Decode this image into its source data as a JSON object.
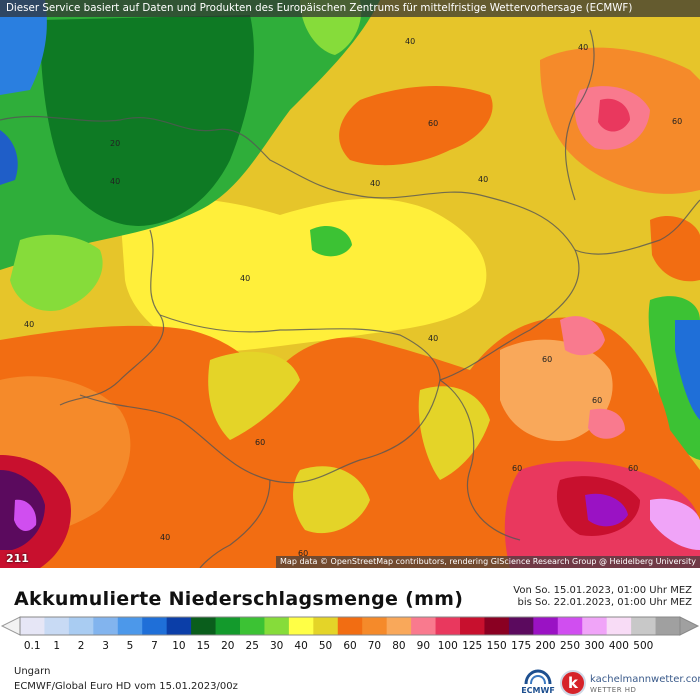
{
  "header": {
    "service_notice": "Dieser Service basiert auf Daten und Produkten des Europäischen Zentrums für mittelfristige Wettervorhersage (ECMWF)"
  },
  "map": {
    "credit": "Map data © OpenStreetMap contributors, rendering GIScience Research Group @ Heidelberg University",
    "frame_label": "211",
    "contour_labels": [
      "20",
      "40",
      "40",
      "40",
      "40",
      "40",
      "40",
      "40",
      "40",
      "40",
      "60",
      "60",
      "60",
      "60",
      "60",
      "60",
      "60",
      "60"
    ]
  },
  "legend": {
    "title": "Akkumulierte Niederschlagsmenge (mm)",
    "period_from": "Von So. 15.01.2023, 01:00 Uhr MEZ",
    "period_to": "bis So. 22.01.2023, 01:00 Uhr MEZ",
    "ticks": [
      "0.1",
      "1",
      "2",
      "3",
      "5",
      "7",
      "10",
      "15",
      "20",
      "25",
      "30",
      "40",
      "50",
      "60",
      "70",
      "80",
      "90",
      "100",
      "125",
      "150",
      "175",
      "200",
      "250",
      "300",
      "400",
      "500"
    ],
    "colors": [
      "#e6e6f6",
      "#c8daf4",
      "#a9ccf2",
      "#82b4ee",
      "#4c98ea",
      "#1f6fd8",
      "#0b3ea8",
      "#0a5e1c",
      "#139a2c",
      "#3cc234",
      "#86dc3a",
      "#ffff46",
      "#e4d428",
      "#f26d12",
      "#f58a2a",
      "#f9a85a",
      "#f97a8e",
      "#e9385e",
      "#c8102e",
      "#8a0022",
      "#5b0a5e",
      "#9a12c4",
      "#d04ef0",
      "#f0a4f8",
      "#f8dcf6",
      "#c8c8c8",
      "#a0a0a0"
    ]
  },
  "footer": {
    "region": "Ungarn",
    "model": "ECMWF/Global Euro HD vom  15.01.2023/00z",
    "ecmwf_logo_text": "ECMWF",
    "brand_name": "kachelmannwetter.com",
    "brand_sub": "WETTER HD",
    "brand_initial": "k"
  }
}
